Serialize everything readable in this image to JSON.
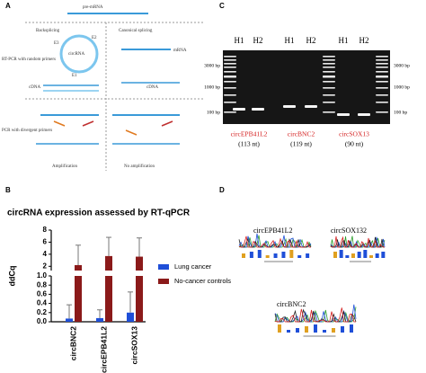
{
  "panel_a": {
    "label": "A",
    "pre_mrna": "pre-mRNA",
    "backsplicing": "Backsplicing",
    "canonical": "Canonical splicing",
    "circrna": "circRNA",
    "mrna": "mRNA",
    "e1": "E1",
    "e2": "E2",
    "e3": "E3",
    "cdna_left": "cDNA",
    "cdna_right": "cDNA",
    "rt_pcr": "RT-PCR with random primers",
    "pcr": "PCR with divergent primers",
    "amplification": "Amplification",
    "no_amplification": "No amplification"
  },
  "panel_c": {
    "label": "C",
    "lanes": [
      "H1",
      "H2",
      "H1",
      "H2",
      "H1",
      "H2"
    ],
    "left_sizes": [
      "3000 bp",
      "1000 bp",
      "100 bp"
    ],
    "right_sizes": [
      "3000 bp",
      "1000 bp",
      "100 bp"
    ],
    "genes": [
      "circEPB41L2",
      "circBNC2",
      "circSOX13"
    ],
    "lengths": [
      "(113 nt)",
      "(119 nt)",
      "(90 nt)"
    ]
  },
  "panel_d": {
    "label": "D",
    "names": [
      "circEPB41L2",
      "circSOX132",
      "circBNC2"
    ]
  },
  "chart_data": {
    "type": "broken-bar",
    "panel_label": "B",
    "title": "circRNA expression assessed by RT-qPCR",
    "y_label": "ddCq",
    "categories": [
      "circBNC2",
      "circEPB41L2",
      "circSOX13"
    ],
    "series": [
      {
        "name": "Lung cancer",
        "color": "#1f4fd8",
        "values": [
          0.07,
          0.08,
          0.2
        ],
        "errors": [
          0.3,
          0.18,
          0.45
        ]
      },
      {
        "name": "No-cancer controls",
        "color": "#8b1a1a",
        "values": [
          2.2,
          3.7,
          3.6
        ],
        "errors": [
          3.3,
          3.1,
          3.1
        ]
      }
    ],
    "ylim_lower": [
      0,
      1
    ],
    "yticks_lower": [
      {
        "value": 0,
        "label": "0.0"
      },
      0.2,
      0.4,
      0.6,
      0.8,
      {
        "value": 1,
        "label": "1.0"
      }
    ],
    "ylim_upper": [
      1.3,
      8
    ],
    "yticks_upper": [
      2,
      4,
      6,
      8
    ],
    "legend_position": "right"
  }
}
